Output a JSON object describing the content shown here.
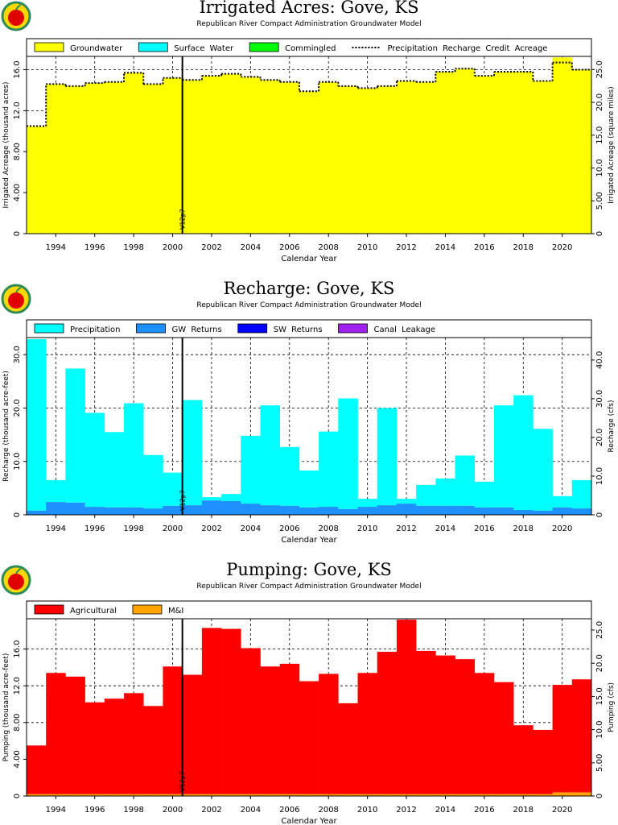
{
  "chart_data": [
    {
      "type": "bar",
      "title": "Irrigated Acres: Gove, KS",
      "subtitle": "Republican River Compact Administration Groundwater Model",
      "xlabel": "Calendar Year",
      "ylabel": "Irrigated Acreage (thousand acres)",
      "y2label": "Irrigated Acreage (square miles)",
      "x": [
        1993,
        1994,
        1995,
        1996,
        1997,
        1998,
        1999,
        2000,
        2001,
        2002,
        2003,
        2004,
        2005,
        2006,
        2007,
        2008,
        2009,
        2010,
        2011,
        2012,
        2013,
        2014,
        2015,
        2016,
        2017,
        2018,
        2019,
        2020,
        2021
      ],
      "xlim": [
        1992.5,
        2021.5
      ],
      "xticks": [
        1994,
        1996,
        1998,
        2000,
        2002,
        2004,
        2006,
        2008,
        2010,
        2012,
        2014,
        2016,
        2018,
        2020
      ],
      "ylim": [
        0,
        17.3
      ],
      "yticks": [
        0,
        {
          "value": 4,
          "label": "4.00"
        },
        {
          "value": 8,
          "label": "8.00"
        },
        {
          "value": 12,
          "label": "12.0"
        },
        {
          "value": 16,
          "label": "16.0"
        }
      ],
      "y2lim": [
        0,
        27.0
      ],
      "y2ticks": [
        0,
        {
          "value": 5,
          "label": "5.00"
        },
        {
          "value": 10,
          "label": "10.0"
        },
        {
          "value": 15,
          "label": "15.0"
        },
        {
          "value": 20,
          "label": "20.0"
        },
        {
          "value": 25,
          "label": "25.0"
        }
      ],
      "grid": true,
      "series": [
        {
          "name": "Groundwater",
          "color": "#ffff00",
          "values": [
            10.5,
            14.6,
            14.4,
            14.7,
            14.8,
            15.7,
            14.6,
            15.2,
            15.0,
            15.4,
            15.6,
            15.3,
            15.0,
            14.8,
            13.9,
            14.8,
            14.4,
            14.2,
            14.4,
            14.9,
            14.8,
            15.8,
            16.1,
            15.4,
            15.8,
            15.8,
            14.9,
            17.2,
            16.0
          ]
        },
        {
          "name": "Surface Water",
          "color": "#00ffff",
          "values": [
            0,
            0,
            0,
            0,
            0,
            0,
            0,
            0,
            0,
            0,
            0,
            0,
            0,
            0,
            0,
            0,
            0,
            0,
            0,
            0,
            0,
            0,
            0,
            0,
            0,
            0,
            0,
            0,
            0
          ]
        },
        {
          "name": "Commingled",
          "color": "#00ff00",
          "values": [
            0,
            0,
            0,
            0,
            0,
            0,
            0,
            0,
            0,
            0,
            0,
            0,
            0,
            0,
            0,
            0,
            0,
            0,
            0,
            0,
            0,
            0,
            0,
            0,
            0,
            0,
            0,
            0,
            0
          ]
        },
        {
          "name": "Precipitation Recharge Credit Acreage",
          "color": "#000000",
          "type": "line",
          "values": [
            10.5,
            14.6,
            14.4,
            14.7,
            14.8,
            15.7,
            14.6,
            15.2,
            15.0,
            15.4,
            15.6,
            15.3,
            15.0,
            14.8,
            13.9,
            14.8,
            14.4,
            14.2,
            14.4,
            14.9,
            14.8,
            15.8,
            16.1,
            15.4,
            15.8,
            15.8,
            14.9,
            16.7,
            16.0
          ]
        }
      ],
      "annotations": [
        {
          "text": "V12p7",
          "x": 2000.5
        }
      ]
    },
    {
      "type": "bar",
      "title": "Recharge: Gove, KS",
      "subtitle": "Republican River Compact Administration Groundwater Model",
      "xlabel": "Calendar Year",
      "ylabel": "Recharge (thousand acre-feet)",
      "y2label": "Recharge (cfs)",
      "x": [
        1993,
        1994,
        1995,
        1996,
        1997,
        1998,
        1999,
        2000,
        2001,
        2002,
        2003,
        2004,
        2005,
        2006,
        2007,
        2008,
        2009,
        2010,
        2011,
        2012,
        2013,
        2014,
        2015,
        2016,
        2017,
        2018,
        2019,
        2020,
        2021
      ],
      "xlim": [
        1992.5,
        2021.5
      ],
      "xticks": [
        1994,
        1996,
        1998,
        2000,
        2002,
        2004,
        2006,
        2008,
        2010,
        2012,
        2014,
        2016,
        2018,
        2020
      ],
      "ylim": [
        0,
        33.2
      ],
      "yticks": [
        0,
        {
          "value": 10,
          "label": "10.0"
        },
        {
          "value": 20,
          "label": "20.0"
        },
        {
          "value": 30,
          "label": "30.0"
        }
      ],
      "y2lim": [
        0,
        45.8
      ],
      "y2ticks": [
        0,
        {
          "value": 10,
          "label": "10.0"
        },
        {
          "value": 20,
          "label": "20.0"
        },
        {
          "value": 30,
          "label": "30.0"
        },
        {
          "value": 40,
          "label": "40.0"
        }
      ],
      "grid": true,
      "series": [
        {
          "name": "Precipitation",
          "color": "#00ffff",
          "values": [
            32.1,
            4.1,
            25.1,
            17.6,
            14.1,
            19.5,
            10.0,
            6.2,
            19.7,
            0.6,
            1.3,
            12.7,
            18.7,
            11.0,
            6.9,
            14.1,
            20.7,
            1.5,
            18.2,
            0.9,
            3.9,
            5.1,
            9.4,
            4.8,
            19.1,
            21.5,
            15.3,
            2.1,
            5.3
          ]
        },
        {
          "name": "GW Returns",
          "color": "#1e90ff",
          "values": [
            0.8,
            2.4,
            2.3,
            1.5,
            1.4,
            1.4,
            1.2,
            1.7,
            1.8,
            2.7,
            2.6,
            2.1,
            1.8,
            1.7,
            1.4,
            1.5,
            1.1,
            1.5,
            1.8,
            2.1,
            1.7,
            1.7,
            1.7,
            1.4,
            1.4,
            0.9,
            0.8,
            1.4,
            1.2
          ]
        },
        {
          "name": "SW Returns",
          "color": "#0000ff",
          "values": [
            0,
            0,
            0,
            0,
            0,
            0,
            0,
            0,
            0,
            0,
            0,
            0,
            0,
            0,
            0,
            0,
            0,
            0,
            0,
            0,
            0,
            0,
            0,
            0,
            0,
            0,
            0,
            0,
            0
          ]
        },
        {
          "name": "Canal Leakage",
          "color": "#a020f0",
          "values": [
            0,
            0,
            0,
            0,
            0,
            0,
            0,
            0,
            0,
            0,
            0,
            0,
            0,
            0,
            0,
            0,
            0,
            0,
            0,
            0,
            0,
            0,
            0,
            0,
            0,
            0,
            0,
            0,
            0
          ]
        }
      ],
      "annotations": [
        {
          "text": "V12p7",
          "x": 2000.5
        }
      ]
    },
    {
      "type": "bar",
      "title": "Pumping: Gove, KS",
      "subtitle": "Republican River Compact Administration Groundwater Model",
      "xlabel": "Calendar Year",
      "ylabel": "Pumping (thousand acre-feet)",
      "y2label": "Pumping (cfs)",
      "x": [
        1993,
        1994,
        1995,
        1996,
        1997,
        1998,
        1999,
        2000,
        2001,
        2002,
        2003,
        2004,
        2005,
        2006,
        2007,
        2008,
        2009,
        2010,
        2011,
        2012,
        2013,
        2014,
        2015,
        2016,
        2017,
        2018,
        2019,
        2020,
        2021
      ],
      "xlim": [
        1992.5,
        2021.5
      ],
      "xticks": [
        1994,
        1996,
        1998,
        2000,
        2002,
        2004,
        2006,
        2008,
        2010,
        2012,
        2014,
        2016,
        2018,
        2020
      ],
      "ylim": [
        0,
        19.3
      ],
      "yticks": [
        0,
        {
          "value": 4,
          "label": "4.00"
        },
        {
          "value": 8,
          "label": "8.00"
        },
        {
          "value": 12,
          "label": "12.0"
        },
        {
          "value": 16,
          "label": "16.0"
        }
      ],
      "y2lim": [
        0,
        26.7
      ],
      "y2ticks": [
        0,
        {
          "value": 5,
          "label": "5.00"
        },
        {
          "value": 10,
          "label": "10.0"
        },
        {
          "value": 15,
          "label": "15.0"
        },
        {
          "value": 20,
          "label": "20.0"
        },
        {
          "value": 25,
          "label": "25.0"
        }
      ],
      "grid": true,
      "series": [
        {
          "name": "Agricultural",
          "color": "#ff0000",
          "values": [
            5.3,
            13.2,
            12.8,
            10.0,
            10.4,
            11.0,
            9.6,
            13.9,
            13.0,
            18.1,
            18.0,
            15.9,
            13.9,
            14.2,
            12.3,
            13.1,
            9.9,
            13.2,
            15.5,
            19.0,
            15.6,
            15.1,
            14.7,
            13.2,
            12.2,
            7.5,
            7.0,
            11.7,
            12.3
          ]
        },
        {
          "name": "M&I",
          "color": "#ffa500",
          "values": [
            0.2,
            0.2,
            0.2,
            0.2,
            0.2,
            0.2,
            0.2,
            0.2,
            0.2,
            0.2,
            0.2,
            0.2,
            0.2,
            0.2,
            0.2,
            0.2,
            0.2,
            0.2,
            0.2,
            0.2,
            0.2,
            0.2,
            0.2,
            0.2,
            0.2,
            0.2,
            0.2,
            0.4,
            0.4
          ]
        }
      ],
      "annotations": [
        {
          "text": "V12p7",
          "x": 2000.5
        }
      ]
    }
  ]
}
